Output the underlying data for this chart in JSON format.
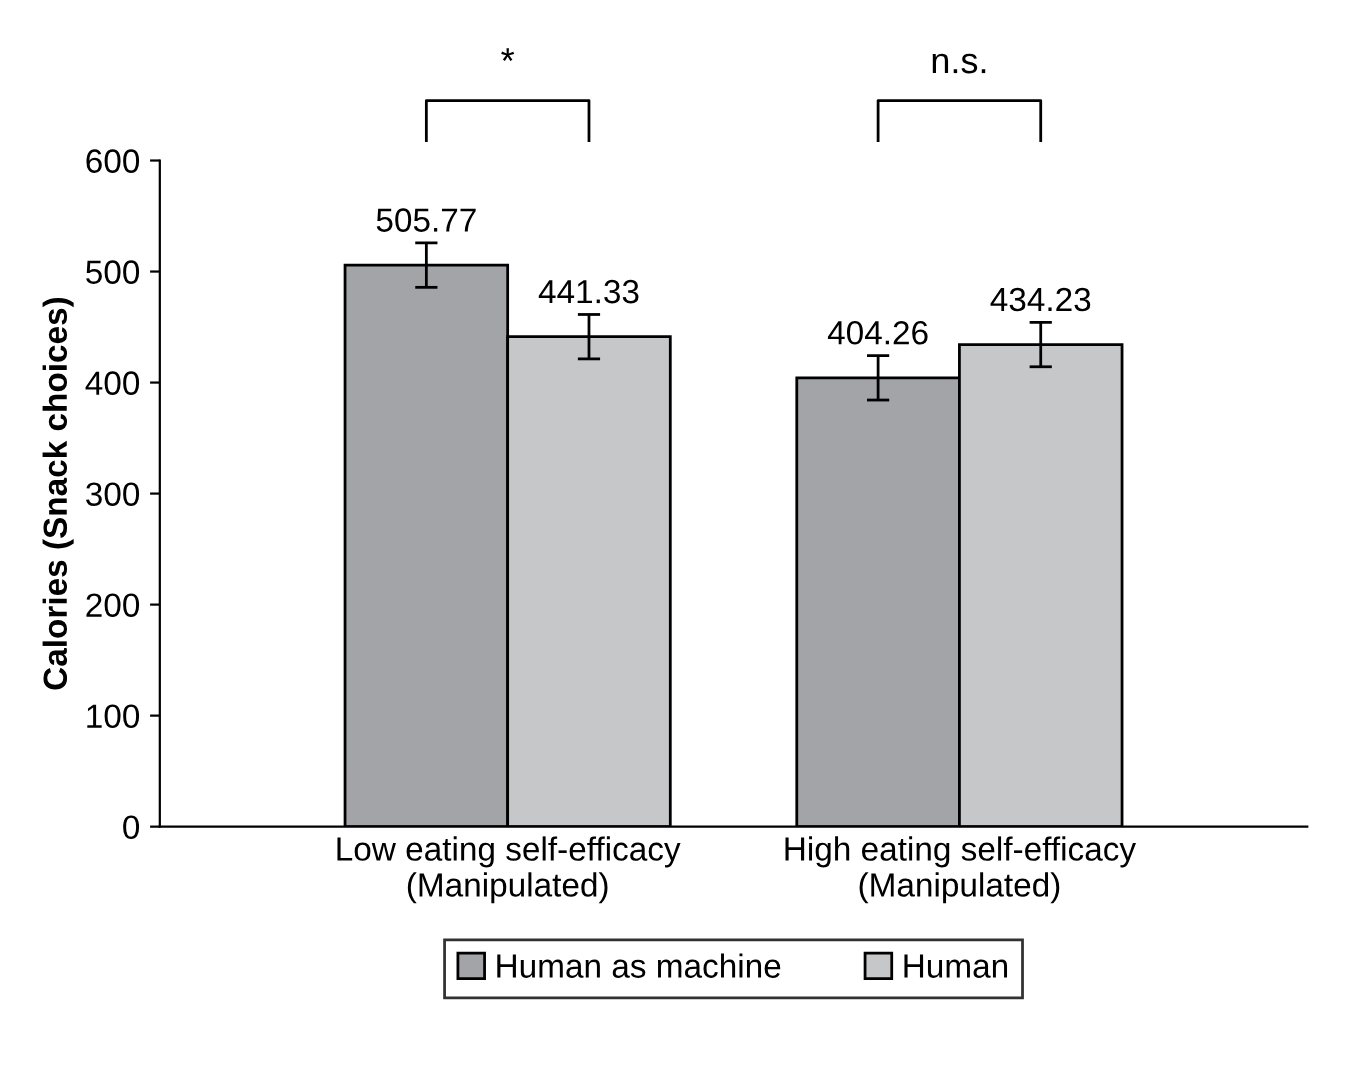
{
  "chart_data": {
    "type": "bar",
    "ylabel": "Calories (Snack choices)",
    "categories": [
      "Low eating self-efficacy\n(Manipulated)",
      "High eating self-efficacy\n(Manipulated)"
    ],
    "series": [
      {
        "name": "Human as machine",
        "color": "#a3a4a8",
        "values": [
          505.77,
          404.26
        ],
        "errors": [
          20,
          20
        ]
      },
      {
        "name": "Human",
        "color": "#c6c7c9",
        "values": [
          441.33,
          434.23
        ],
        "errors": [
          20,
          20
        ]
      }
    ],
    "data_labels": true,
    "ylim": [
      0,
      600
    ],
    "yticks": [
      0,
      100,
      200,
      300,
      400,
      500,
      600
    ],
    "grid": false,
    "legend": "bottom",
    "annotations": [
      "*",
      "n.s."
    ]
  }
}
